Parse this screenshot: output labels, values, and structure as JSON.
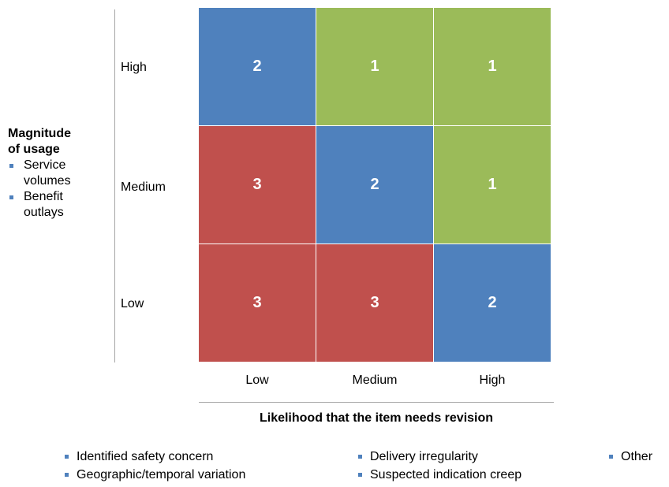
{
  "colors": {
    "level_1": "#9bbb59",
    "level_2": "#4f81bd",
    "level_3": "#c0504d",
    "bullet": "#4f81bd",
    "axis_line": "#a6a6a6"
  },
  "y_axis": {
    "title_line1": "Magnitude",
    "title_line2": "of usage",
    "bullets": [
      {
        "line1": "Service",
        "line2": "volumes"
      },
      {
        "line1": "Benefit",
        "line2": "outlays"
      }
    ],
    "ticks": [
      "High",
      "Medium",
      "Low"
    ]
  },
  "x_axis": {
    "ticks": [
      "Low",
      "Medium",
      "High"
    ],
    "title": "Likelihood that the item needs revision"
  },
  "matrix": {
    "rows": [
      {
        "y": "High",
        "cells": [
          {
            "x": "Low",
            "value": "2",
            "level": 2
          },
          {
            "x": "Medium",
            "value": "1",
            "level": 1
          },
          {
            "x": "High",
            "value": "1",
            "level": 1
          }
        ]
      },
      {
        "y": "Medium",
        "cells": [
          {
            "x": "Low",
            "value": "3",
            "level": 3
          },
          {
            "x": "Medium",
            "value": "2",
            "level": 2
          },
          {
            "x": "High",
            "value": "1",
            "level": 1
          }
        ]
      },
      {
        "y": "Low",
        "cells": [
          {
            "x": "Low",
            "value": "3",
            "level": 3
          },
          {
            "x": "Medium",
            "value": "3",
            "level": 3
          },
          {
            "x": "High",
            "value": "2",
            "level": 2
          }
        ]
      }
    ]
  },
  "legend": {
    "items": [
      "Identified safety concern",
      "Geographic/temporal variation",
      "Delivery irregularity",
      "Suspected indication creep",
      "Other"
    ]
  }
}
